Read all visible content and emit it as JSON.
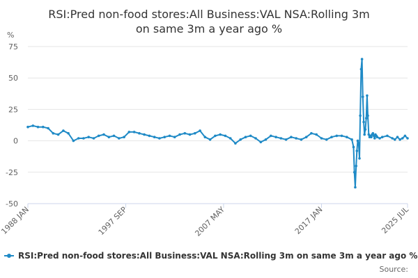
{
  "chart_data": {
    "type": "line",
    "title_line1": "RSI:Pred non-food stores:All Business:VAL NSA:Rolling 3m",
    "title_line2": "on same 3m a year ago %",
    "ylabel": "%",
    "ylim": [
      -50,
      75
    ],
    "yticks": [
      {
        "value": 75,
        "label": "75"
      },
      {
        "value": 50,
        "label": "50"
      },
      {
        "value": 25,
        "label": "25"
      },
      {
        "value": 0,
        "label": "0"
      },
      {
        "value": -25,
        "label": "-25"
      },
      {
        "value": -50,
        "label": "-50"
      }
    ],
    "xlim": [
      1988.0,
      2025.5
    ],
    "xticks": [
      {
        "value": 1988.0,
        "label": "1988 JAN"
      },
      {
        "value": 1997.67,
        "label": "1997 SEP"
      },
      {
        "value": 2007.33,
        "label": "2007 MAY"
      },
      {
        "value": 2017.0,
        "label": "2017 JAN"
      },
      {
        "value": 2025.5,
        "label": "2025 JUL"
      }
    ],
    "series": [
      {
        "name": "RSI:Pred non-food stores:All Business:VAL NSA:Rolling 3m on same 3m a year ago %",
        "color": "#1f8ac6",
        "x": [
          1988.0,
          1988.5,
          1989.0,
          1989.5,
          1990.0,
          1990.5,
          1991.0,
          1991.5,
          1992.0,
          1992.5,
          1993.0,
          1993.5,
          1994.0,
          1994.5,
          1995.0,
          1995.5,
          1996.0,
          1996.5,
          1997.0,
          1997.5,
          1998.0,
          1998.5,
          1999.0,
          1999.5,
          2000.0,
          2000.5,
          2001.0,
          2001.5,
          2002.0,
          2002.5,
          2003.0,
          2003.5,
          2004.0,
          2004.5,
          2005.0,
          2005.5,
          2006.0,
          2006.5,
          2007.0,
          2007.5,
          2008.0,
          2008.5,
          2009.0,
          2009.5,
          2010.0,
          2010.5,
          2011.0,
          2011.5,
          2012.0,
          2012.5,
          2013.0,
          2013.5,
          2014.0,
          2014.5,
          2015.0,
          2015.5,
          2016.0,
          2016.5,
          2017.0,
          2017.5,
          2018.0,
          2018.5,
          2019.0,
          2019.5,
          2020.0,
          2020.17,
          2020.25,
          2020.33,
          2020.42,
          2020.5,
          2020.58,
          2020.67,
          2020.75,
          2020.83,
          2020.92,
          2021.0,
          2021.08,
          2021.17,
          2021.25,
          2021.33,
          2021.42,
          2021.5,
          2021.58,
          2021.67,
          2021.75,
          2021.83,
          2021.92,
          2022.0,
          2022.08,
          2022.17,
          2022.25,
          2022.33,
          2022.42,
          2022.5,
          2022.75,
          2023.0,
          2023.5,
          2024.0,
          2024.25,
          2024.5,
          2024.75,
          2025.0,
          2025.25,
          2025.5
        ],
        "y": [
          11,
          12,
          11,
          11,
          10,
          6,
          5,
          8,
          6,
          0,
          2,
          2,
          3,
          2,
          4,
          5,
          3,
          4,
          2,
          3,
          7,
          7,
          6,
          5,
          4,
          3,
          2,
          3,
          4,
          3,
          5,
          6,
          5,
          6,
          8,
          3,
          1,
          4,
          5,
          4,
          2,
          -2,
          1,
          3,
          4,
          2,
          -1,
          1,
          4,
          3,
          2,
          1,
          3,
          2,
          1,
          3,
          6,
          5,
          2,
          1,
          3,
          4,
          4,
          3,
          1,
          -5,
          -25,
          -37,
          -20,
          -8,
          0,
          -2,
          -14,
          20,
          57,
          65,
          35,
          15,
          5,
          9,
          18,
          36,
          20,
          5,
          3,
          4,
          3,
          5,
          6,
          4,
          2,
          5,
          4,
          3,
          2,
          3,
          4,
          2,
          1,
          3,
          1,
          2,
          4,
          2
        ]
      }
    ],
    "legend": "bottom",
    "source_label": "Source:"
  }
}
